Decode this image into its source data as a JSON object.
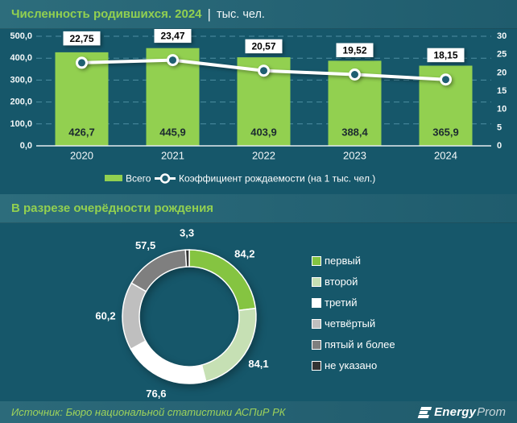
{
  "header": {
    "title": "Численность родившихся. 2024",
    "separator": "|",
    "units": "тыс. чел."
  },
  "section2": {
    "title": "В разрезе очерёдности рождения"
  },
  "footer": {
    "source": "Источник: Бюро национальной статистики АСПиР РК",
    "logo_bold": "Energy",
    "logo_light": "Prom"
  },
  "colors": {
    "background": "#16576a",
    "band": "#256374",
    "accent_green": "#92d050",
    "gridline": "#4d8ea1",
    "bar": "#92d050",
    "line": "#ffffff",
    "marker_fill": "#1f5f72",
    "axis_line": "#e3ecef",
    "label_box": "#ffffff"
  },
  "chart_data": [
    {
      "type": "bar",
      "title": "Численность родившихся. 2024, тыс. чел.",
      "categories": [
        "2020",
        "2021",
        "2022",
        "2023",
        "2024"
      ],
      "series": [
        {
          "name": "Всего",
          "type": "bar",
          "values": [
            426.7,
            445.9,
            403.9,
            388.4,
            365.9
          ],
          "labels": [
            "426,7",
            "445,9",
            "403,9",
            "388,4",
            "365,9"
          ]
        },
        {
          "name": "Коэффициент рождаемости (на 1 тыс. чел.)",
          "type": "line",
          "values": [
            22.75,
            23.47,
            20.57,
            19.52,
            18.15
          ],
          "labels": [
            "22,75",
            "23,47",
            "20,57",
            "19,52",
            "18,15"
          ]
        }
      ],
      "left_axis": {
        "min": 0,
        "max": 500,
        "step": 100,
        "tick_labels": [
          "0,0",
          "100,0",
          "200,0",
          "300,0",
          "400,0",
          "500,0"
        ]
      },
      "right_axis": {
        "min": 0,
        "max": 30,
        "step": 5
      },
      "grid": "dashed horizontal",
      "legend_position": "bottom"
    },
    {
      "type": "pie",
      "subtype": "donut",
      "title": "В разрезе очерёдности рождения",
      "slices": [
        {
          "label": "первый",
          "value": 84.2,
          "display": "84,2",
          "color": "#85c441"
        },
        {
          "label": "второй",
          "value": 84.1,
          "display": "84,1",
          "color": "#c6e0b4"
        },
        {
          "label": "третий",
          "value": 76.6,
          "display": "76,6",
          "color": "#ffffff"
        },
        {
          "label": "четвёртый",
          "value": 60.2,
          "display": "60,2",
          "color": "#bfbfbf"
        },
        {
          "label": "пятый и более",
          "value": 57.5,
          "display": "57,5",
          "color": "#7f7f7f"
        },
        {
          "label": "не указано",
          "value": 3.3,
          "display": "3,3",
          "color": "#333333"
        }
      ],
      "legend_position": "right",
      "start_angle": "top, clockwise"
    }
  ]
}
